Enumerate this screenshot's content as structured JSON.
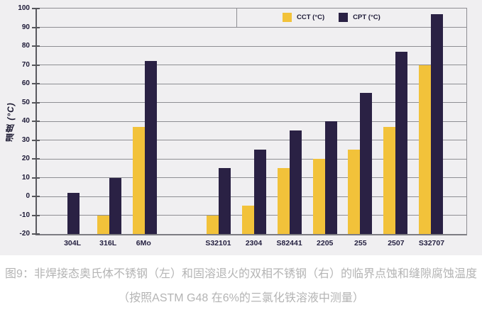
{
  "chart_data": {
    "type": "bar",
    "title": "",
    "ylabel": "温度 (°C)",
    "xlabel": "",
    "ylim": [
      -20,
      100
    ],
    "ytick_step": 10,
    "grid": true,
    "legend_position": "top-right",
    "bars_baseline": -20,
    "group_gap_after_index": 2,
    "categories": [
      "304L",
      "316L",
      "6Mo",
      "S32101",
      "2304",
      "S82441",
      "2205",
      "255",
      "2507",
      "S32707"
    ],
    "series": [
      {
        "name": "CCT (°C)",
        "color": "#f2c23a",
        "values": [
          null,
          -10,
          37,
          -10,
          -5,
          15,
          20,
          25,
          37,
          70
        ]
      },
      {
        "name": "CPT (°C)",
        "color": "#2a2144",
        "values": [
          2,
          10,
          72,
          15,
          25,
          35,
          40,
          55,
          77,
          97
        ]
      }
    ]
  },
  "legend": {
    "items": [
      {
        "label": "CCT (°C)",
        "color": "#f2c23a"
      },
      {
        "label": "CPT (°C)",
        "color": "#2a2144"
      }
    ]
  },
  "axes": {
    "y_title": "温度 (°C)"
  },
  "caption": {
    "line1": "图9：非焊接态奥氏体不锈钢（左）和固溶退火的双相不锈钢（右）的临界点蚀和缝隙腐蚀温度",
    "line2": "（按照ASTM G48 在6%的三氯化铁溶液中测量）"
  },
  "colors": {
    "chart_background": "#f0eff1",
    "gridline": "#8e8e93",
    "axis_text": "#1c1936",
    "caption_text": "#b4b4b4",
    "cct_yellow": "#f2c23a",
    "cpt_navy": "#2a2144"
  }
}
